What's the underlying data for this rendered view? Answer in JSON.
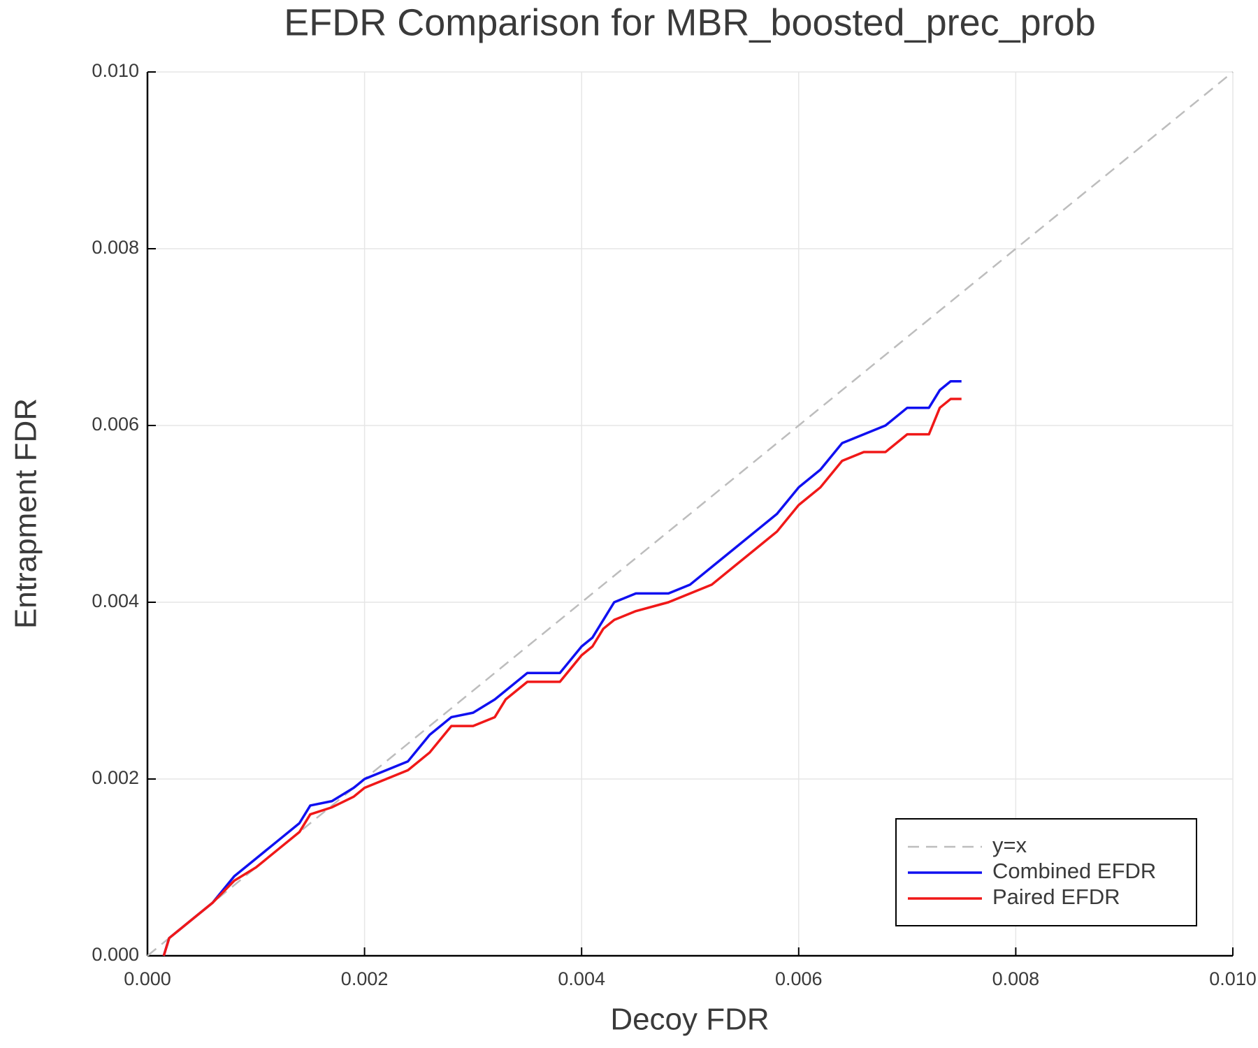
{
  "chart_data": {
    "type": "line",
    "title": "EFDR Comparison for MBR_boosted_prec_prob",
    "x_label": "Decoy FDR",
    "y_label": "Entrapment FDR",
    "xlim": [
      0,
      0.01
    ],
    "ylim": [
      0,
      0.01
    ],
    "xticks": [
      {
        "value": 0,
        "label": "0.000"
      },
      {
        "value": 0.002,
        "label": "0.002"
      },
      {
        "value": 0.004,
        "label": "0.004"
      },
      {
        "value": 0.006,
        "label": "0.006"
      },
      {
        "value": 0.008,
        "label": "0.008"
      },
      {
        "value": 0.01,
        "label": "0.010"
      }
    ],
    "yticks": [
      {
        "value": 0,
        "label": "0.000"
      },
      {
        "value": 0.002,
        "label": "0.002"
      },
      {
        "value": 0.004,
        "label": "0.004"
      },
      {
        "value": 0.006,
        "label": "0.006"
      },
      {
        "value": 0.008,
        "label": "0.008"
      },
      {
        "value": 0.01,
        "label": "0.010"
      }
    ],
    "grid": true,
    "legend": "bottom right",
    "series": [
      {
        "name": "y=x",
        "color": "#bdbdbd",
        "linestyle": "dashed",
        "x": [
          0,
          0.01
        ],
        "values": [
          0,
          0.01
        ]
      },
      {
        "name": "Combined EFDR",
        "color": "#1010f0",
        "linestyle": "solid",
        "x": [
          0.00015,
          0.0002,
          0.0004,
          0.0006,
          0.0008,
          0.001,
          0.0012,
          0.0014,
          0.0015,
          0.0017,
          0.0019,
          0.002,
          0.0022,
          0.0024,
          0.0026,
          0.0028,
          0.003,
          0.0032,
          0.0033,
          0.0035,
          0.0038,
          0.004,
          0.0041,
          0.0042,
          0.0043,
          0.0045,
          0.0048,
          0.005,
          0.0052,
          0.0054,
          0.0056,
          0.0058,
          0.006,
          0.0062,
          0.0064,
          0.0066,
          0.0068,
          0.007,
          0.0072,
          0.0073,
          0.0074,
          0.0075
        ],
        "values": [
          0,
          0.0002,
          0.0004,
          0.0006,
          0.0009,
          0.0011,
          0.0013,
          0.0015,
          0.0017,
          0.00175,
          0.0019,
          0.002,
          0.0021,
          0.0022,
          0.0025,
          0.0027,
          0.00275,
          0.0029,
          0.003,
          0.0032,
          0.0032,
          0.0035,
          0.0036,
          0.0038,
          0.004,
          0.0041,
          0.0041,
          0.0042,
          0.0044,
          0.0046,
          0.0048,
          0.005,
          0.0053,
          0.0055,
          0.0058,
          0.0059,
          0.006,
          0.0062,
          0.0062,
          0.0064,
          0.0065,
          0.0065
        ]
      },
      {
        "name": "Paired EFDR",
        "color": "#f01818",
        "linestyle": "solid",
        "x": [
          0.00015,
          0.0002,
          0.0004,
          0.0006,
          0.0008,
          0.001,
          0.0012,
          0.0014,
          0.0015,
          0.0017,
          0.0019,
          0.002,
          0.0022,
          0.0024,
          0.0026,
          0.0028,
          0.003,
          0.0032,
          0.0033,
          0.0035,
          0.0038,
          0.004,
          0.0041,
          0.0042,
          0.0043,
          0.0045,
          0.0048,
          0.005,
          0.0052,
          0.0054,
          0.0056,
          0.0058,
          0.006,
          0.0062,
          0.0064,
          0.0066,
          0.0068,
          0.007,
          0.0072,
          0.0073,
          0.0074,
          0.0075
        ],
        "values": [
          0,
          0.0002,
          0.0004,
          0.0006,
          0.00085,
          0.001,
          0.0012,
          0.0014,
          0.0016,
          0.00168,
          0.0018,
          0.0019,
          0.002,
          0.0021,
          0.0023,
          0.0026,
          0.0026,
          0.0027,
          0.0029,
          0.0031,
          0.0031,
          0.0034,
          0.0035,
          0.0037,
          0.0038,
          0.0039,
          0.004,
          0.0041,
          0.0042,
          0.0044,
          0.0046,
          0.0048,
          0.0051,
          0.0053,
          0.0056,
          0.0057,
          0.0057,
          0.0059,
          0.0059,
          0.0062,
          0.0063,
          0.0063
        ]
      }
    ]
  }
}
